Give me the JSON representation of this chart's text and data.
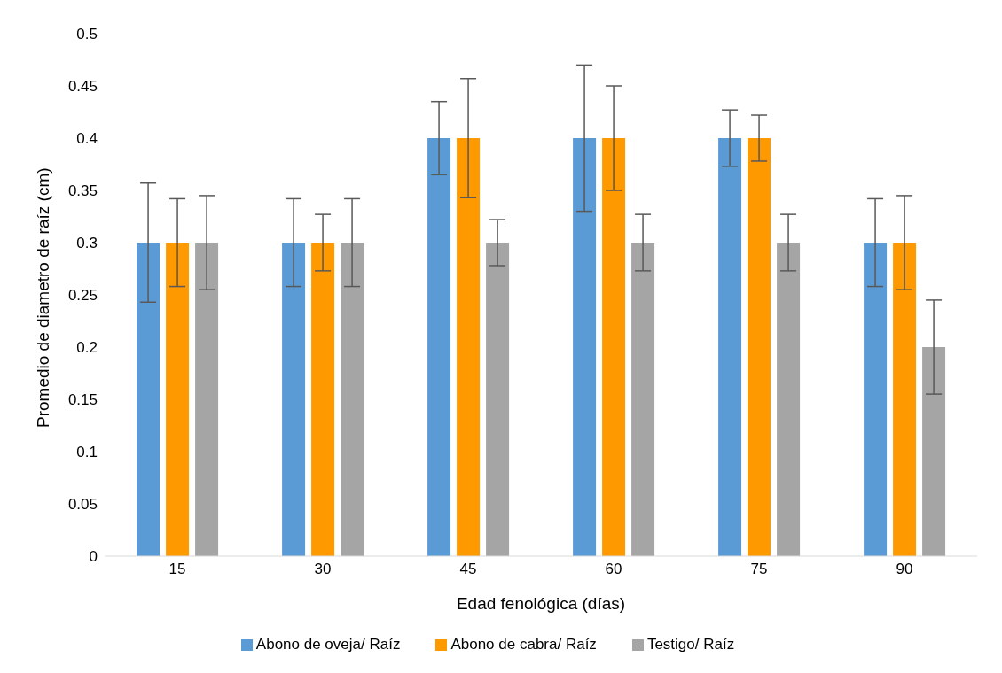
{
  "chart_data": {
    "type": "bar",
    "xlabel": "Edad fenológica (días)",
    "ylabel": "Promedio de diametro de raíz (cm)",
    "categories": [
      "15",
      "30",
      "45",
      "60",
      "75",
      "90"
    ],
    "series": [
      {
        "name": "Abono de oveja/ Raíz",
        "color": "#5b9bd5",
        "values": [
          0.3,
          0.3,
          0.4,
          0.4,
          0.4,
          0.3
        ],
        "errors": [
          0.057,
          0.042,
          0.035,
          0.07,
          0.027,
          0.042
        ]
      },
      {
        "name": "Abono de cabra/ Raíz",
        "color": "#ff9900",
        "values": [
          0.3,
          0.3,
          0.4,
          0.4,
          0.4,
          0.3
        ],
        "errors": [
          0.042,
          0.027,
          0.057,
          0.05,
          0.022,
          0.045
        ]
      },
      {
        "name": "Testigo/ Raíz",
        "color": "#a5a5a5",
        "values": [
          0.3,
          0.3,
          0.3,
          0.3,
          0.3,
          0.2
        ],
        "errors": [
          0.045,
          0.042,
          0.022,
          0.027,
          0.027,
          0.045
        ]
      }
    ],
    "ylim": [
      0,
      0.5
    ],
    "yticks": [
      0,
      0.05,
      0.1,
      0.15,
      0.2,
      0.25,
      0.3,
      0.35,
      0.4,
      0.45,
      0.5
    ],
    "grid": false,
    "legend": "bottom"
  }
}
